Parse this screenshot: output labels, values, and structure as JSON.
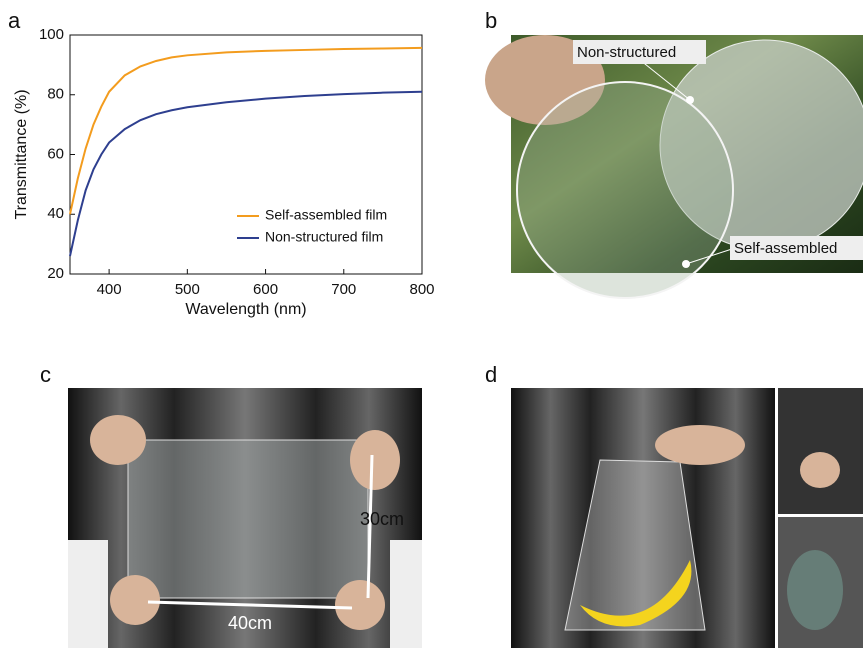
{
  "chart_data": {
    "type": "line",
    "xlabel": "Wavelength (nm)",
    "ylabel": "Transmittance (%)",
    "x": [
      350,
      360,
      370,
      380,
      390,
      400,
      420,
      440,
      460,
      480,
      500,
      550,
      600,
      650,
      700,
      750,
      800
    ],
    "series": [
      {
        "name": "Self-assembled film",
        "color": "#f39c1e",
        "values": [
          40,
          52,
          62,
          70,
          76,
          81,
          86.5,
          89.5,
          91.3,
          92.5,
          93.2,
          94.2,
          94.7,
          95,
          95.3,
          95.5,
          95.7
        ]
      },
      {
        "name": "Non-structured film",
        "color": "#2e3f8f",
        "values": [
          26,
          38,
          48,
          55,
          60,
          64,
          68.5,
          71.5,
          73.5,
          74.8,
          75.8,
          77.5,
          78.7,
          79.6,
          80.2,
          80.7,
          81
        ]
      }
    ],
    "xlim": [
      350,
      800
    ],
    "xticks": [
      400,
      500,
      600,
      700,
      800
    ],
    "ylim": [
      20,
      100
    ],
    "yticks": [
      20,
      40,
      60,
      80,
      100
    ],
    "legend": "lower right",
    "grid": false
  },
  "panel_labels": [
    "a",
    "b",
    "c",
    "d"
  ],
  "photo_annotations": [
    "Non-structured",
    "Self-assembled",
    "30cm",
    "40cm"
  ]
}
